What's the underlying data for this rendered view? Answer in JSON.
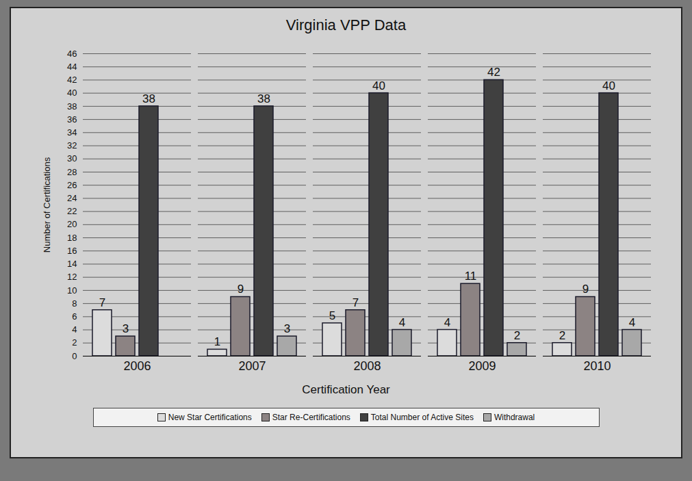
{
  "chart_data": {
    "type": "bar",
    "title": "Virginia VPP Data",
    "x_label": "Certification Year",
    "y_label": "Number of Certifications",
    "categories": [
      "2006",
      "2007",
      "2008",
      "2009",
      "2010"
    ],
    "series": [
      {
        "name": "New Star Certifications",
        "color": "#dcdcdc",
        "values": [
          7,
          1,
          5,
          4,
          2
        ]
      },
      {
        "name": "Star Re-Certifications",
        "color": "#8c8383",
        "values": [
          3,
          9,
          7,
          11,
          9
        ]
      },
      {
        "name": "Total Number of Active Sites",
        "color": "#404040",
        "values": [
          38,
          38,
          40,
          42,
          40
        ]
      },
      {
        "name": "Withdrawal",
        "color": "#a8a8a8",
        "values": [
          null,
          3,
          4,
          2,
          4
        ]
      }
    ],
    "ylim": [
      0,
      46
    ],
    "yticks": [
      0,
      2,
      4,
      6,
      8,
      10,
      12,
      14,
      16,
      18,
      20,
      22,
      24,
      26,
      28,
      30,
      32,
      34,
      36,
      38,
      40,
      42,
      44,
      46
    ],
    "grid": true,
    "legend": "bottom",
    "data_labels": true
  }
}
